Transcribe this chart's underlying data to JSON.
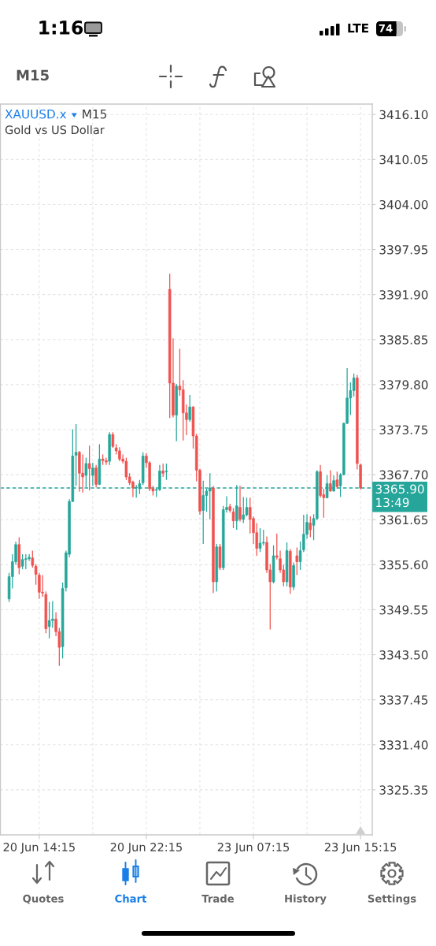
{
  "chart_data": {
    "type": "candlestick",
    "title": "XAUUSD.x",
    "subtitle": "Gold vs US Dollar",
    "categories": [
      null,
      null,
      null,
      null,
      null,
      null,
      null,
      null,
      null,
      "20 Jun 14:15",
      null,
      null,
      null,
      null,
      null,
      null,
      null,
      null,
      null,
      null,
      null,
      null,
      null,
      null,
      null,
      null,
      null,
      null,
      null,
      null,
      null,
      null,
      null,
      null,
      null,
      null,
      null,
      null,
      null,
      null,
      null,
      "20 Jun 22:15",
      null,
      null,
      null,
      null,
      null,
      null,
      null,
      null,
      null,
      null,
      null,
      null,
      null,
      null,
      null,
      null,
      null,
      null,
      null,
      null,
      null,
      null,
      null,
      null,
      null,
      null,
      null,
      null,
      null,
      null,
      null,
      "23 Jun 07:15",
      null,
      null,
      null,
      null,
      null,
      null,
      null,
      null,
      null,
      null,
      null,
      null,
      null,
      null,
      null,
      null,
      null,
      null,
      null,
      null,
      null,
      null,
      null,
      null,
      null,
      null,
      null,
      null,
      null,
      null,
      null,
      "23 Jun 15:15"
    ],
    "ohlc": [
      [
        3351.0,
        3354.5,
        3350.6,
        3354.0
      ],
      [
        3354.0,
        3357.0,
        3352.4,
        3356.0
      ],
      [
        3356.0,
        3358.7,
        3355.6,
        3358.3
      ],
      [
        3358.3,
        3359.3,
        3354.3,
        3355.2
      ],
      [
        3355.4,
        3357.0,
        3355.0,
        3356.3
      ],
      [
        3356.3,
        3357.0,
        3355.0,
        3356.4
      ],
      [
        3356.4,
        3357.0,
        3356.1,
        3356.6
      ],
      [
        3356.5,
        3357.5,
        3355.2,
        3355.5
      ],
      [
        3355.4,
        3355.7,
        3352.9,
        3354.3
      ],
      [
        3354.2,
        3354.5,
        3351.0,
        3351.9
      ],
      [
        3351.9,
        3354.2,
        3351.3,
        3351.8
      ],
      [
        3351.6,
        3352.0,
        3346.4,
        3347.0
      ],
      [
        3347.3,
        3350.6,
        3345.7,
        3348.1
      ],
      [
        3348.1,
        3350.7,
        3347.1,
        3348.3
      ],
      [
        3348.3,
        3349.2,
        3346.0,
        3346.6
      ],
      [
        3346.6,
        3347.1,
        3342.0,
        3344.5
      ],
      [
        3344.6,
        3353.2,
        3343.0,
        3352.4
      ],
      [
        3352.5,
        3357.5,
        3352.0,
        3357.2
      ],
      [
        3357.0,
        3364.4,
        3356.6,
        3364.1
      ],
      [
        3364.1,
        3373.8,
        3364.0,
        3370.2
      ],
      [
        3370.3,
        3374.5,
        3366.2,
        3370.7
      ],
      [
        3370.7,
        3370.9,
        3365.4,
        3367.9
      ],
      [
        3367.9,
        3370.4,
        3365.3,
        3367.4
      ],
      [
        3367.6,
        3370.0,
        3366.0,
        3369.2
      ],
      [
        3369.2,
        3371.6,
        3365.6,
        3368.5
      ],
      [
        3367.6,
        3369.3,
        3366.2,
        3368.6
      ],
      [
        3368.6,
        3369.0,
        3366.0,
        3366.4
      ],
      [
        3366.4,
        3371.8,
        3366.3,
        3369.8
      ],
      [
        3369.8,
        3370.4,
        3369.0,
        3369.6
      ],
      [
        3369.6,
        3370.0,
        3369.0,
        3369.4
      ],
      [
        3369.5,
        3373.4,
        3369.0,
        3373.1
      ],
      [
        3373.1,
        3373.4,
        3371.3,
        3371.5
      ],
      [
        3371.3,
        3371.8,
        3370.4,
        3370.9
      ],
      [
        3370.9,
        3371.4,
        3369.5,
        3369.8
      ],
      [
        3369.8,
        3370.4,
        3369.2,
        3369.5
      ],
      [
        3369.5,
        3370.0,
        3367.0,
        3367.4
      ],
      [
        3367.4,
        3367.9,
        3366.3,
        3366.6
      ],
      [
        3366.7,
        3366.9,
        3364.7,
        3365.9
      ],
      [
        3365.9,
        3366.3,
        3364.6,
        3366.0
      ],
      [
        3365.8,
        3367.0,
        3365.1,
        3366.5
      ],
      [
        3366.6,
        3370.7,
        3366.3,
        3370.2
      ],
      [
        3370.2,
        3370.6,
        3368.6,
        3369.3
      ],
      [
        3369.3,
        3369.5,
        3365.5,
        3365.8
      ],
      [
        3365.8,
        3366.2,
        3364.9,
        3365.5
      ],
      [
        3365.6,
        3366.0,
        3364.7,
        3365.7
      ],
      [
        3365.7,
        3369.0,
        3365.5,
        3368.2
      ],
      [
        3368.2,
        3369.2,
        3367.4,
        3367.9
      ],
      [
        3368.1,
        3369.2,
        3367.0,
        3368.2
      ],
      [
        3392.6,
        3394.7,
        3375.3,
        3380.0
      ],
      [
        3380.0,
        3386.0,
        3375.4,
        3375.7
      ],
      [
        3375.7,
        3379.9,
        3372.2,
        3379.6
      ],
      [
        3379.6,
        3384.6,
        3378.3,
        3379.1
      ],
      [
        3379.1,
        3380.4,
        3372.3,
        3376.0
      ],
      [
        3376.0,
        3377.1,
        3373.0,
        3375.1
      ],
      [
        3375.1,
        3378.4,
        3374.8,
        3376.8
      ],
      [
        3376.8,
        3376.9,
        3371.2,
        3372.9
      ],
      [
        3372.9,
        3373.2,
        3366.8,
        3368.3
      ],
      [
        3368.3,
        3368.5,
        3362.3,
        3362.8
      ],
      [
        3362.9,
        3366.9,
        3358.4,
        3364.9
      ],
      [
        3364.9,
        3365.8,
        3362.7,
        3365.5
      ],
      [
        3365.5,
        3367.9,
        3361.7,
        3365.9
      ],
      [
        3365.9,
        3366.2,
        3351.8,
        3353.3
      ],
      [
        3353.3,
        3358.4,
        3352.0,
        3358.0
      ],
      [
        3358.0,
        3358.4,
        3354.9,
        3355.2
      ],
      [
        3355.2,
        3363.5,
        3354.9,
        3363.0
      ],
      [
        3363.0,
        3364.8,
        3362.6,
        3363.3
      ],
      [
        3363.4,
        3363.8,
        3362.6,
        3362.9
      ],
      [
        3362.7,
        3363.2,
        3360.5,
        3361.5
      ],
      [
        3361.5,
        3366.3,
        3360.3,
        3363.5
      ],
      [
        3363.3,
        3366.2,
        3361.4,
        3361.7
      ],
      [
        3361.7,
        3364.7,
        3361.2,
        3362.3
      ],
      [
        3362.3,
        3364.6,
        3362.1,
        3363.3
      ],
      [
        3363.3,
        3364.6,
        3359.8,
        3361.7
      ],
      [
        3361.8,
        3362.1,
        3358.4,
        3359.9
      ],
      [
        3359.9,
        3361.2,
        3356.8,
        3357.8
      ],
      [
        3357.8,
        3360.5,
        3357.3,
        3358.5
      ],
      [
        3358.5,
        3360.3,
        3358.2,
        3358.6
      ],
      [
        3358.6,
        3359.4,
        3354.5,
        3354.9
      ],
      [
        3354.9,
        3355.7,
        3346.9,
        3353.3
      ],
      [
        3353.3,
        3358.2,
        3353.1,
        3356.8
      ],
      [
        3356.8,
        3359.8,
        3356.3,
        3356.6
      ],
      [
        3356.4,
        3357.5,
        3354.5,
        3354.9
      ],
      [
        3354.9,
        3355.6,
        3352.7,
        3353.3
      ],
      [
        3353.3,
        3358.6,
        3352.7,
        3357.5
      ],
      [
        3357.4,
        3357.7,
        3351.7,
        3352.6
      ],
      [
        3352.6,
        3355.9,
        3352.2,
        3355.5
      ],
      [
        3356.8,
        3357.9,
        3354.2,
        3356.0
      ],
      [
        3356.0,
        3358.7,
        3354.9,
        3357.5
      ],
      [
        3357.6,
        3362.3,
        3357.3,
        3359.7
      ],
      [
        3359.7,
        3362.4,
        3359.1,
        3361.3
      ],
      [
        3361.2,
        3362.1,
        3359.3,
        3360.3
      ],
      [
        3360.9,
        3362.4,
        3358.9,
        3361.8
      ],
      [
        3361.8,
        3368.3,
        3361.6,
        3368.1
      ],
      [
        3368.1,
        3369.0,
        3364.6,
        3364.9
      ],
      [
        3365.0,
        3365.8,
        3361.9,
        3364.6
      ],
      [
        3364.6,
        3367.6,
        3364.5,
        3366.5
      ],
      [
        3366.5,
        3368.3,
        3365.4,
        3365.5
      ],
      [
        3365.5,
        3367.6,
        3365.4,
        3366.9
      ],
      [
        3367.0,
        3368.1,
        3365.8,
        3366.1
      ],
      [
        3366.2,
        3367.9,
        3364.7,
        3367.7
      ],
      [
        3367.7,
        3374.7,
        3367.6,
        3374.6
      ],
      [
        3374.6,
        3382.0,
        3374.5,
        3378.0
      ],
      [
        3378.0,
        3380.1,
        3375.7,
        3379.0
      ],
      [
        3379.0,
        3381.3,
        3378.2,
        3380.7
      ],
      [
        3380.7,
        3381.1,
        3368.4,
        3369.2
      ],
      [
        3369.0,
        3369.2,
        3365.7,
        3365.9
      ]
    ],
    "colors": [
      "#26a69a",
      "#26a69a",
      "#26a69a",
      "#ef5350",
      "#26a69a",
      "#26a69a",
      "#26a69a",
      "#ef5350",
      "#ef5350",
      "#ef5350",
      "#ef5350",
      "#ef5350",
      "#26a69a",
      "#26a69a",
      "#ef5350",
      "#ef5350",
      "#26a69a",
      "#26a69a",
      "#26a69a",
      "#26a69a",
      "#26a69a",
      "#ef5350",
      "#ef5350",
      "#26a69a",
      "#ef5350",
      "#26a69a",
      "#ef5350",
      "#26a69a",
      "#ef5350",
      "#ef5350",
      "#26a69a",
      "#ef5350",
      "#ef5350",
      "#ef5350",
      "#ef5350",
      "#ef5350",
      "#ef5350",
      "#ef5350",
      "#26a69a",
      "#26a69a",
      "#26a69a",
      "#ef5350",
      "#ef5350",
      "#ef5350",
      "#26a69a",
      "#26a69a",
      "#ef5350",
      "#26a69a",
      "#ef5350",
      "#ef5350",
      "#26a69a",
      "#ef5350",
      "#ef5350",
      "#ef5350",
      "#26a69a",
      "#ef5350",
      "#ef5350",
      "#ef5350",
      "#26a69a",
      "#26a69a",
      "#26a69a",
      "#ef5350",
      "#26a69a",
      "#ef5350",
      "#26a69a",
      "#26a69a",
      "#ef5350",
      "#ef5350",
      "#26a69a",
      "#ef5350",
      "#26a69a",
      "#26a69a",
      "#ef5350",
      "#ef5350",
      "#ef5350",
      "#26a69a",
      "#26a69a",
      "#ef5350",
      "#ef5350",
      "#26a69a",
      "#ef5350",
      "#ef5350",
      "#ef5350",
      "#26a69a",
      "#ef5350",
      "#26a69a",
      "#ef5350",
      "#26a69a",
      "#26a69a",
      "#26a69a",
      "#ef5350",
      "#26a69a",
      "#26a69a",
      "#ef5350",
      "#ef5350",
      "#26a69a",
      "#ef5350",
      "#26a69a",
      "#ef5350",
      "#26a69a",
      "#26a69a",
      "#26a69a",
      "#26a69a",
      "#26a69a",
      "#ef5350",
      "#ef5350"
    ],
    "ylim": [
      3319.3,
      3417.5
    ],
    "yticks": [
      {
        "value": 3325.35,
        "label": "3325.35"
      },
      {
        "value": 3331.4,
        "label": "3331.40"
      },
      {
        "value": 3337.45,
        "label": "3337.45"
      },
      {
        "value": 3343.5,
        "label": "3343.50"
      },
      {
        "value": 3349.55,
        "label": "3349.55"
      },
      {
        "value": 3355.6,
        "label": "3355.60"
      },
      {
        "value": 3361.65,
        "label": "3361.65"
      },
      {
        "value": 3367.7,
        "label": "3367.70"
      },
      {
        "value": 3373.75,
        "label": "3373.75"
      },
      {
        "value": 3379.8,
        "label": "3379.80"
      },
      {
        "value": 3385.85,
        "label": "3385.85"
      },
      {
        "value": 3391.9,
        "label": "3391.90"
      },
      {
        "value": 3397.95,
        "label": "3397.95"
      },
      {
        "value": 3404.0,
        "label": "3404.00"
      },
      {
        "value": 3410.05,
        "label": "3410.05"
      },
      {
        "value": 3416.1,
        "label": "3416.10"
      }
    ],
    "grid": true,
    "ref_lines": [
      {
        "axis": "y",
        "value": 3365.9,
        "label": "3365.90\n13:49",
        "color": "#26a69a",
        "line_style": "dashed"
      }
    ],
    "annotations": [
      "1:16",
      "LTE",
      "74",
      "M15",
      "M15",
      "Quotes",
      "Chart",
      "Trade",
      "History",
      "Settings"
    ]
  }
}
